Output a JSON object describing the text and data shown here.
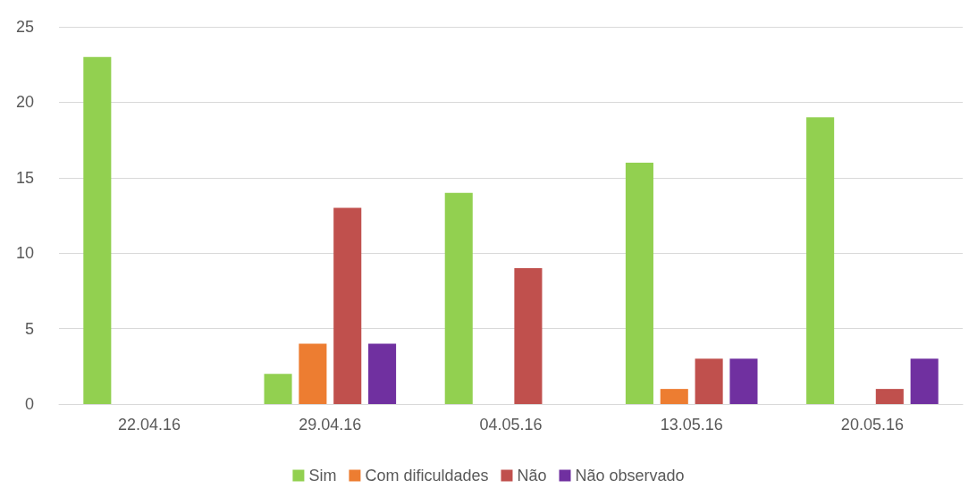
{
  "chart_data": {
    "type": "bar",
    "categories": [
      "22.04.16",
      "29.04.16",
      "04.05.16",
      "13.05.16",
      "20.05.16"
    ],
    "series": [
      {
        "name": "Sim",
        "color": "#92d050",
        "values": [
          23,
          2,
          14,
          16,
          19
        ]
      },
      {
        "name": "Com dificuldades",
        "color": "#ed7d31",
        "values": [
          0,
          4,
          0,
          1,
          0
        ]
      },
      {
        "name": "Não",
        "color": "#c0504d",
        "values": [
          0,
          13,
          9,
          3,
          1
        ]
      },
      {
        "name": "Não observado",
        "color": "#7030a0",
        "values": [
          0,
          4,
          0,
          3,
          3
        ]
      }
    ],
    "ylim": [
      0,
      25
    ],
    "yticks": [
      0,
      5,
      10,
      15,
      20,
      25
    ],
    "grid": "y",
    "legend": "bottom"
  }
}
